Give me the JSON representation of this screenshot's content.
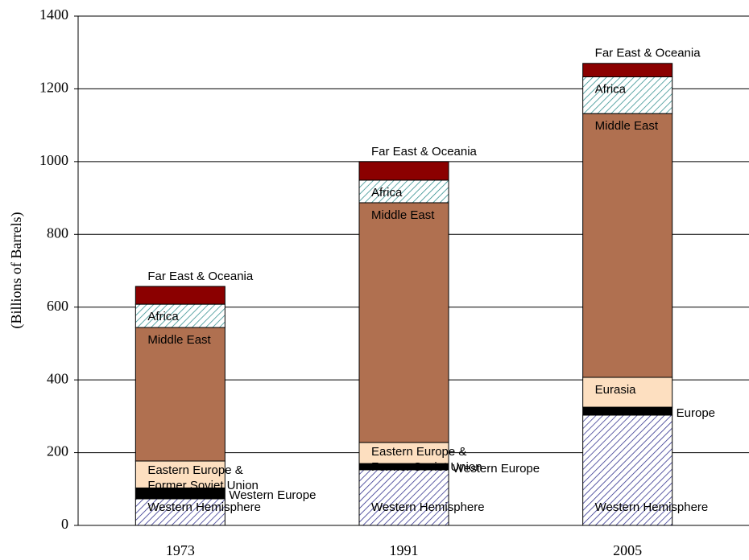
{
  "chart_data": {
    "type": "stacked-bar",
    "y_label": "(Billions of Barrels)",
    "categories": [
      "1973",
      "1991",
      "2005"
    ],
    "ylim": [
      0,
      1400
    ],
    "yticks": [
      0,
      200,
      400,
      600,
      800,
      1000,
      1200,
      1400
    ],
    "grid": true,
    "series": [
      {
        "labels": [
          "Western Hemisphere",
          "Western Hemisphere",
          "Western Hemisphere"
        ],
        "color": "#2b2b8a",
        "hatch": true,
        "label_position": "inside-bottom",
        "values": [
          73,
          153,
          303
        ]
      },
      {
        "labels": [
          "Western Europe",
          "Western Europe",
          "Europe"
        ],
        "color": "#000000",
        "hatch": false,
        "label_position": "right",
        "values": [
          30,
          17,
          22
        ]
      },
      {
        "labels": [
          [
            "Eastern Europe &",
            "Former Soviet Union"
          ],
          [
            "Eastern Europe &",
            "Former Soviet Union"
          ],
          [
            "Eurasia"
          ]
        ],
        "color": "#fddfc0",
        "hatch": false,
        "label_position": "inside-top",
        "values": [
          74,
          58,
          82
        ]
      },
      {
        "labels": [
          "Middle East",
          "Middle East",
          "Middle East"
        ],
        "color": "#b07050",
        "hatch": false,
        "label_position": "inside-top",
        "values": [
          367,
          659,
          725
        ]
      },
      {
        "labels": [
          "Africa",
          "Africa",
          "Africa"
        ],
        "color": "#2a8a8a",
        "hatch": true,
        "label_position": "inside-top",
        "values": [
          64,
          62,
          101
        ]
      },
      {
        "labels": [
          "Far East & Oceania",
          "Far East & Oceania",
          "Far East & Oceania"
        ],
        "color": "#8b0000",
        "hatch": false,
        "label_position": "above",
        "values": [
          49,
          51,
          37
        ]
      }
    ]
  }
}
